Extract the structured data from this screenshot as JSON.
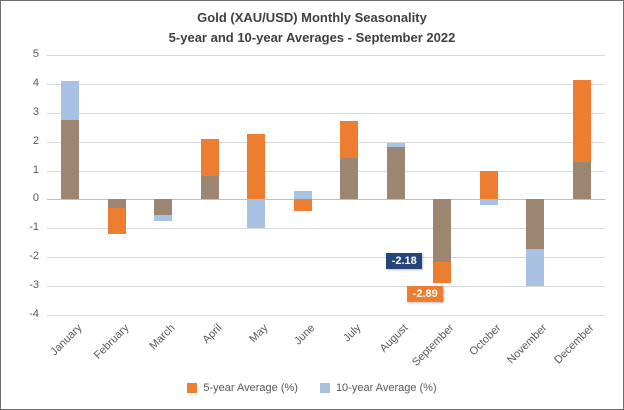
{
  "chart_data": {
    "type": "bar",
    "title": "Gold (XAU/USD) Monthly Seasonality",
    "subtitle": "5-year and 10-year Averages - September 2022",
    "categories": [
      "January",
      "February",
      "March",
      "April",
      "May",
      "June",
      "July",
      "August",
      "September",
      "October",
      "November",
      "December"
    ],
    "series": [
      {
        "name": "5-year Average (%)",
        "color": "#ED7D31",
        "values": [
          2.75,
          -1.2,
          -0.55,
          2.1,
          2.25,
          -0.4,
          2.7,
          1.8,
          -2.89,
          1.0,
          -1.7,
          4.15
        ]
      },
      {
        "name": "10-year Average (%)",
        "color": "#A7C2E2",
        "values": [
          4.1,
          -0.3,
          -0.75,
          0.8,
          -1.0,
          0.3,
          1.45,
          1.95,
          -2.18,
          -0.2,
          -3.0,
          1.3
        ]
      }
    ],
    "ylim": [
      -4,
      5
    ],
    "ytick_step": 1,
    "grid": true,
    "legend_position": "bottom",
    "overlap_color": "#9C8672",
    "axis_color": "#BFBFBF",
    "gridline_color": "#D9D9D9",
    "annotations": [
      {
        "label": "-2.18",
        "value": -2.18,
        "month_index": 8,
        "bg": "#264478",
        "placement": "left"
      },
      {
        "label": "-2.89",
        "value": -2.89,
        "month_index": 8,
        "bg": "#ED7D31",
        "placement": "below"
      }
    ]
  }
}
